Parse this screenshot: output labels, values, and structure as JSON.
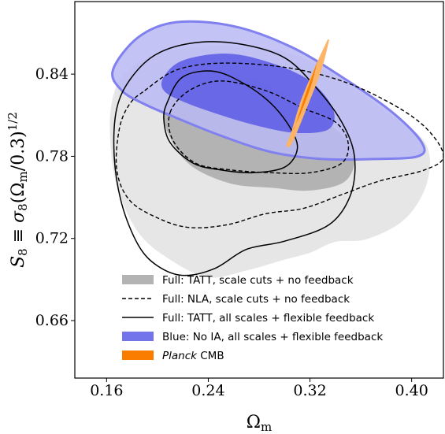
{
  "chart_data": {
    "type": "contour",
    "xlabel": "Ωm",
    "ylabel": "S8 ≡ σ8(Ωm/0.3)^1/2",
    "xlim": [
      0.135,
      0.425
    ],
    "ylim": [
      0.618,
      0.893
    ],
    "xticks": [
      {
        "value": 0.16,
        "label": "0.16"
      },
      {
        "value": 0.24,
        "label": "0.24"
      },
      {
        "value": 0.32,
        "label": "0.32"
      },
      {
        "value": 0.4,
        "label": "0.40"
      }
    ],
    "yticks": [
      {
        "value": 0.66,
        "label": "0.66"
      },
      {
        "value": 0.72,
        "label": "0.72"
      },
      {
        "value": 0.78,
        "label": "0.78"
      },
      {
        "value": 0.84,
        "label": "0.84"
      }
    ],
    "legend_position": "lower-center",
    "colors": {
      "gray_outer": "#e6e6e6",
      "gray_inner": "#b3b3b3",
      "blue_outer": "#b8b8f5",
      "blue_inner": "#5a5ae6",
      "blue_edge": "#8080ef",
      "orange_outer": "#fbb468",
      "orange_inner": "#fa7d00",
      "black": "#000000"
    },
    "series": [
      {
        "name": "Full: TATT, scale cuts + no feedback",
        "style": "gray-filled",
        "contours": {
          "outer": [
            [
              0.175,
              0.84
            ],
            [
              0.2,
              0.855
            ],
            [
              0.25,
              0.86
            ],
            [
              0.3,
              0.856
            ],
            [
              0.34,
              0.838
            ],
            [
              0.38,
              0.812
            ],
            [
              0.41,
              0.79
            ],
            [
              0.412,
              0.762
            ],
            [
              0.395,
              0.735
            ],
            [
              0.365,
              0.72
            ],
            [
              0.34,
              0.718
            ],
            [
              0.32,
              0.71
            ],
            [
              0.3,
              0.705
            ],
            [
              0.27,
              0.697
            ],
            [
              0.24,
              0.692
            ],
            [
              0.21,
              0.705
            ],
            [
              0.185,
              0.725
            ],
            [
              0.168,
              0.76
            ],
            [
              0.163,
              0.8
            ],
            [
              0.166,
              0.825
            ]
          ],
          "inner": [
            [
              0.205,
              0.812
            ],
            [
              0.22,
              0.835
            ],
            [
              0.25,
              0.842
            ],
            [
              0.285,
              0.833
            ],
            [
              0.315,
              0.815
            ],
            [
              0.34,
              0.8
            ],
            [
              0.355,
              0.782
            ],
            [
              0.348,
              0.762
            ],
            [
              0.32,
              0.755
            ],
            [
              0.29,
              0.757
            ],
            [
              0.258,
              0.76
            ],
            [
              0.228,
              0.772
            ],
            [
              0.212,
              0.79
            ]
          ]
        }
      },
      {
        "name": "Full: NLA, scale cuts + no feedback",
        "style": "dashed",
        "contours": {
          "outer": [
            [
              0.19,
              0.828
            ],
            [
              0.215,
              0.843
            ],
            [
              0.25,
              0.848
            ],
            [
              0.3,
              0.845
            ],
            [
              0.345,
              0.835
            ],
            [
              0.385,
              0.818
            ],
            [
              0.412,
              0.8
            ],
            [
              0.425,
              0.78
            ],
            [
              0.41,
              0.77
            ],
            [
              0.375,
              0.762
            ],
            [
              0.345,
              0.752
            ],
            [
              0.315,
              0.742
            ],
            [
              0.285,
              0.738
            ],
            [
              0.255,
              0.73
            ],
            [
              0.225,
              0.728
            ],
            [
              0.2,
              0.735
            ],
            [
              0.178,
              0.748
            ],
            [
              0.168,
              0.77
            ],
            [
              0.17,
              0.8
            ],
            [
              0.178,
              0.818
            ]
          ],
          "inner": [
            [
              0.21,
              0.812
            ],
            [
              0.225,
              0.828
            ],
            [
              0.25,
              0.835
            ],
            [
              0.285,
              0.828
            ],
            [
              0.315,
              0.815
            ],
            [
              0.34,
              0.805
            ],
            [
              0.35,
              0.79
            ],
            [
              0.345,
              0.775
            ],
            [
              0.32,
              0.768
            ],
            [
              0.29,
              0.768
            ],
            [
              0.258,
              0.77
            ],
            [
              0.23,
              0.775
            ],
            [
              0.212,
              0.792
            ]
          ]
        }
      },
      {
        "name": "Full: TATT, all scales + flexible feedback",
        "style": "solid",
        "contours": {
          "outer": [
            [
              0.18,
              0.838
            ],
            [
              0.2,
              0.855
            ],
            [
              0.23,
              0.863
            ],
            [
              0.265,
              0.862
            ],
            [
              0.3,
              0.852
            ],
            [
              0.325,
              0.83
            ],
            [
              0.345,
              0.805
            ],
            [
              0.355,
              0.78
            ],
            [
              0.352,
              0.752
            ],
            [
              0.335,
              0.73
            ],
            [
              0.3,
              0.718
            ],
            [
              0.27,
              0.712
            ],
            [
              0.245,
              0.698
            ],
            [
              0.22,
              0.693
            ],
            [
              0.2,
              0.7
            ],
            [
              0.185,
              0.715
            ],
            [
              0.172,
              0.745
            ],
            [
              0.166,
              0.78
            ],
            [
              0.168,
              0.815
            ]
          ],
          "inner": [
            [
              0.208,
              0.82
            ],
            [
              0.22,
              0.838
            ],
            [
              0.245,
              0.842
            ],
            [
              0.27,
              0.832
            ],
            [
              0.29,
              0.818
            ],
            [
              0.305,
              0.8
            ],
            [
              0.31,
              0.785
            ],
            [
              0.3,
              0.772
            ],
            [
              0.275,
              0.768
            ],
            [
              0.25,
              0.77
            ],
            [
              0.228,
              0.775
            ],
            [
              0.21,
              0.79
            ],
            [
              0.205,
              0.807
            ]
          ]
        }
      },
      {
        "name": "Blue: No IA, all scales + flexible feedback",
        "style": "blue-filled",
        "contours": {
          "outer": [
            [
              0.165,
              0.843
            ],
            [
              0.185,
              0.867
            ],
            [
              0.215,
              0.878
            ],
            [
              0.26,
              0.875
            ],
            [
              0.305,
              0.86
            ],
            [
              0.345,
              0.838
            ],
            [
              0.385,
              0.812
            ],
            [
              0.408,
              0.79
            ],
            [
              0.405,
              0.78
            ],
            [
              0.37,
              0.778
            ],
            [
              0.33,
              0.778
            ],
            [
              0.29,
              0.783
            ],
            [
              0.25,
              0.795
            ],
            [
              0.215,
              0.808
            ],
            [
              0.19,
              0.818
            ],
            [
              0.172,
              0.828
            ]
          ],
          "inner": [
            [
              0.205,
              0.838
            ],
            [
              0.22,
              0.85
            ],
            [
              0.255,
              0.855
            ],
            [
              0.29,
              0.848
            ],
            [
              0.32,
              0.835
            ],
            [
              0.338,
              0.815
            ],
            [
              0.335,
              0.8
            ],
            [
              0.31,
              0.797
            ],
            [
              0.28,
              0.802
            ],
            [
              0.25,
              0.81
            ],
            [
              0.22,
              0.82
            ],
            [
              0.205,
              0.828
            ]
          ]
        }
      },
      {
        "name": "Planck CMB",
        "name_prefix": "Planck",
        "name_suffix": " CMB",
        "style": "orange-filled",
        "contours": {
          "outer": [
            [
              0.334,
              0.863
            ],
            [
              0.328,
              0.842
            ],
            [
              0.318,
              0.818
            ],
            [
              0.306,
              0.791
            ],
            [
              0.302,
              0.788
            ],
            [
              0.306,
              0.798
            ],
            [
              0.314,
              0.822
            ],
            [
              0.326,
              0.848
            ],
            [
              0.333,
              0.862
            ]
          ],
          "inner": [
            [
              0.326,
              0.85
            ],
            [
              0.321,
              0.832
            ],
            [
              0.313,
              0.812
            ],
            [
              0.307,
              0.8
            ],
            [
              0.309,
              0.804
            ],
            [
              0.316,
              0.824
            ],
            [
              0.323,
              0.842
            ],
            [
              0.326,
              0.85
            ]
          ]
        }
      }
    ]
  }
}
